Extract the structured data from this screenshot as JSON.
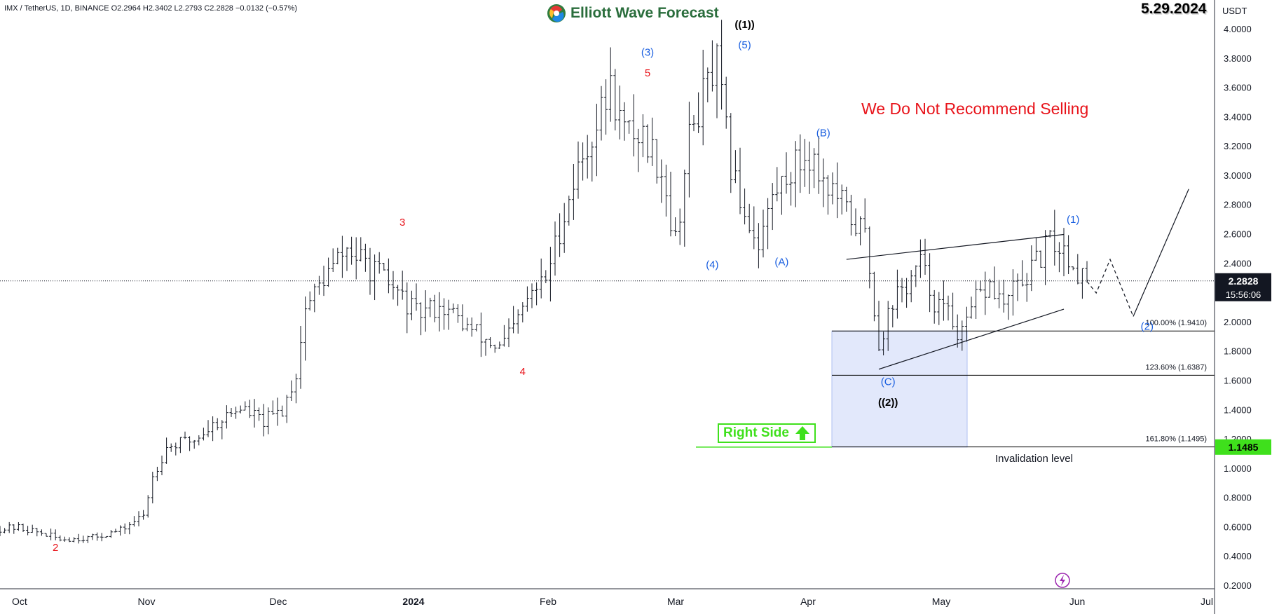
{
  "header": {
    "symbol_line": "IMX / TetherUS, 1D, BINANCE  O2.2964  H2.3402  L2.2793  C2.2828  −0.0132 (−0.57%)"
  },
  "brand": {
    "name": "Elliott Wave Forecast"
  },
  "date_stamp": "5.29.2024",
  "currency": "USDT",
  "warning_text": "We Do Not Recommend Selling",
  "right_side": {
    "label": "Right Side",
    "icon": "up-arrow-icon",
    "color": "#3fe01c"
  },
  "invalidation_label": "Invalidation level",
  "colors": {
    "wave_blue": "#1a5fe0",
    "wave_red": "#e8141b",
    "wave_black": "#000000",
    "zone_fill": "#dde5fb",
    "zone_border": "#9fb4ee"
  },
  "chart_data": {
    "type": "ohlc",
    "interval": "1D",
    "ylim": [
      0.2,
      4.0
    ],
    "y_ticks": [
      "4.0000",
      "3.8000",
      "3.6000",
      "3.4000",
      "3.2000",
      "3.0000",
      "2.8000",
      "2.6000",
      "2.4000",
      "2.2000",
      "2.0000",
      "1.8000",
      "1.6000",
      "1.4000",
      "1.2000",
      "1.0000",
      "0.8000",
      "0.6000",
      "0.4000",
      "0.2000"
    ],
    "x_ticks": [
      {
        "label": "Oct",
        "bold": false
      },
      {
        "label": "Nov",
        "bold": false
      },
      {
        "label": "Dec",
        "bold": false
      },
      {
        "label": "2024",
        "bold": true
      },
      {
        "label": "Feb",
        "bold": false
      },
      {
        "label": "Mar",
        "bold": false
      },
      {
        "label": "Apr",
        "bold": false
      },
      {
        "label": "May",
        "bold": false
      },
      {
        "label": "Jun",
        "bold": false
      },
      {
        "label": "Jul",
        "bold": false
      }
    ],
    "last_price": {
      "value": "2.2828",
      "countdown": "15:56:06"
    },
    "invalidation_price": "1.1485",
    "trend_path": [
      [
        0,
        0.59
      ],
      [
        4,
        0.6
      ],
      [
        9,
        0.56
      ],
      [
        13,
        0.52
      ],
      [
        20,
        0.53
      ],
      [
        26,
        0.58
      ],
      [
        31,
        0.68
      ],
      [
        33,
        0.95
      ],
      [
        36,
        1.15
      ],
      [
        42,
        1.2
      ],
      [
        46,
        1.3
      ],
      [
        52,
        1.42
      ],
      [
        57,
        1.32
      ],
      [
        61,
        1.4
      ],
      [
        64,
        1.65
      ],
      [
        66,
        2.1
      ],
      [
        70,
        2.3
      ],
      [
        75,
        2.5
      ],
      [
        78,
        2.42
      ],
      [
        82,
        2.32
      ],
      [
        86,
        2.2
      ],
      [
        90,
        2.05
      ],
      [
        95,
        2.12
      ],
      [
        99,
        2.02
      ],
      [
        103,
        1.92
      ],
      [
        108,
        1.82
      ],
      [
        111,
        1.95
      ],
      [
        114,
        2.15
      ],
      [
        118,
        2.3
      ],
      [
        122,
        2.75
      ],
      [
        125,
        3.05
      ],
      [
        129,
        3.35
      ],
      [
        132,
        3.6
      ],
      [
        135,
        3.3
      ],
      [
        139,
        3.28
      ],
      [
        143,
        3.05
      ],
      [
        146,
        2.55
      ],
      [
        149,
        3.25
      ],
      [
        152,
        3.55
      ],
      [
        155,
        3.75
      ],
      [
        158,
        3.05
      ],
      [
        161,
        2.75
      ],
      [
        164,
        2.55
      ],
      [
        167,
        2.85
      ],
      [
        171,
        3.05
      ],
      [
        175,
        3.15
      ],
      [
        178,
        2.98
      ],
      [
        181,
        2.85
      ],
      [
        184,
        2.7
      ],
      [
        187,
        2.6
      ],
      [
        190,
        1.85
      ],
      [
        193,
        2.15
      ],
      [
        196,
        2.25
      ],
      [
        199,
        2.4
      ],
      [
        202,
        2.15
      ],
      [
        205,
        2.05
      ],
      [
        208,
        1.9
      ],
      [
        211,
        2.15
      ],
      [
        214,
        2.25
      ],
      [
        217,
        2.12
      ],
      [
        220,
        2.25
      ],
      [
        223,
        2.35
      ],
      [
        227,
        2.55
      ],
      [
        230,
        2.5
      ],
      [
        233,
        2.35
      ],
      [
        235,
        2.28
      ]
    ],
    "bar_count": 236,
    "price_scale_label": "USDT",
    "forecast_dashed": [
      [
        235,
        2.28
      ],
      [
        237,
        2.2
      ],
      [
        240,
        2.43
      ],
      [
        245,
        2.04
      ]
    ],
    "forecast_solid": [
      [
        245,
        2.04
      ],
      [
        257,
        2.91
      ]
    ],
    "triangle_upper": [
      [
        183,
        2.43
      ],
      [
        230,
        2.6
      ]
    ],
    "triangle_lower": [
      [
        190,
        1.68
      ],
      [
        230,
        2.09
      ]
    ],
    "fib_levels": [
      {
        "label": "100.00% (1.9410)",
        "price": 1.941
      },
      {
        "label": "123.60% (1.6387)",
        "price": 1.6387
      },
      {
        "label": "161.80% (1.1495)",
        "price": 1.1495
      }
    ],
    "zone": {
      "x0": 185,
      "x1": 215,
      "top": 1.941,
      "bottom": 1.1485
    },
    "invalidation_line": {
      "x0": 155,
      "x1": 185,
      "price": 1.1485
    },
    "wave_labels": [
      {
        "text": "2",
        "x": 12,
        "price": 0.44,
        "color": "red"
      },
      {
        "text": "3",
        "x": 87,
        "price": 2.66,
        "color": "red"
      },
      {
        "text": "4",
        "x": 113,
        "price": 1.64,
        "color": "red"
      },
      {
        "text": "5",
        "x": 140,
        "price": 3.68,
        "color": "red"
      },
      {
        "text": "(3)",
        "x": 140,
        "price": 3.82,
        "color": "blue"
      },
      {
        "text": "(4)",
        "x": 154,
        "price": 2.37,
        "color": "blue"
      },
      {
        "text": "(5)",
        "x": 161,
        "price": 3.87,
        "color": "blue"
      },
      {
        "text": "((1))",
        "x": 161,
        "price": 4.01,
        "color": "black"
      },
      {
        "text": "(A)",
        "x": 169,
        "price": 2.39,
        "color": "blue"
      },
      {
        "text": "(B)",
        "x": 178,
        "price": 3.27,
        "color": "blue"
      },
      {
        "text": "(C)",
        "x": 192,
        "price": 1.57,
        "color": "blue"
      },
      {
        "text": "((2))",
        "x": 192,
        "price": 1.43,
        "color": "black"
      },
      {
        "text": "(1)",
        "x": 232,
        "price": 2.68,
        "color": "blue"
      },
      {
        "text": "(2)",
        "x": 248,
        "price": 1.95,
        "color": "blue"
      }
    ]
  }
}
